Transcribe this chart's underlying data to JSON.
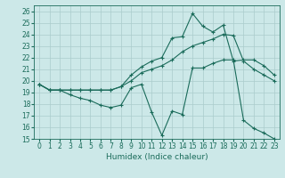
{
  "xlabel": "Humidex (Indice chaleur)",
  "background_color": "#cce8e8",
  "grid_color": "#aacccc",
  "line_color": "#1a6b5a",
  "xlim": [
    -0.5,
    23.5
  ],
  "ylim": [
    15,
    26.5
  ],
  "yticks": [
    15,
    16,
    17,
    18,
    19,
    20,
    21,
    22,
    23,
    24,
    25,
    26
  ],
  "xtick_labels": [
    "0",
    "1",
    "2",
    "3",
    "4",
    "5",
    "6",
    "7",
    "8",
    "9",
    "10",
    "11",
    "12",
    "13",
    "14",
    "15",
    "16",
    "17",
    "18",
    "19",
    "20",
    "21",
    "22",
    "23"
  ],
  "series": [
    [
      19.7,
      19.2,
      19.2,
      18.8,
      18.5,
      18.3,
      17.9,
      17.7,
      17.9,
      19.4,
      19.7,
      17.3,
      15.3,
      17.4,
      17.1,
      21.1,
      21.1,
      21.5,
      21.8,
      21.8,
      16.6,
      15.9,
      15.5,
      15.0
    ],
    [
      19.7,
      19.2,
      19.2,
      19.2,
      19.2,
      19.2,
      19.2,
      19.2,
      19.5,
      20.0,
      20.7,
      21.0,
      21.3,
      21.8,
      22.5,
      23.0,
      23.3,
      23.6,
      24.0,
      23.9,
      21.7,
      21.0,
      20.5,
      20.0
    ],
    [
      19.7,
      19.2,
      19.2,
      19.2,
      19.2,
      19.2,
      19.2,
      19.2,
      19.5,
      20.5,
      21.2,
      21.7,
      22.0,
      23.7,
      23.8,
      25.8,
      24.7,
      24.2,
      24.8,
      21.7,
      21.8,
      21.8,
      21.3,
      20.5
    ]
  ]
}
